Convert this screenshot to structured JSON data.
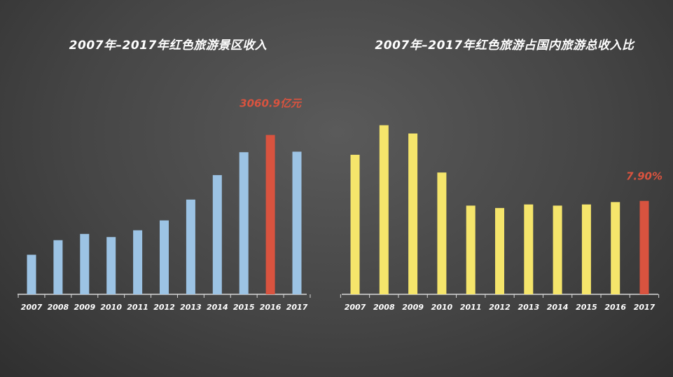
{
  "colors": {
    "left_bar": "#9cc3e4",
    "right_bar": "#f5e56b",
    "highlight": "#d9533f",
    "axis": "#d9d9d9"
  },
  "chart_data": [
    {
      "type": "bar",
      "title": "2007年–2017年红色旅游景区收入",
      "categories": [
        "2007",
        "2008",
        "2009",
        "2010",
        "2011",
        "2012",
        "2013",
        "2014",
        "2015",
        "2016",
        "2017"
      ],
      "values": [
        760,
        1040,
        1160,
        1100,
        1230,
        1420,
        1820,
        2290,
        2730,
        3060.9,
        2740
      ],
      "highlight_index": 9,
      "annotation": {
        "text": "3060.9亿元",
        "index": 9
      },
      "ylim": [
        0,
        3500
      ],
      "grid": false
    },
    {
      "type": "bar",
      "title": "2007年–2017年红色旅游占国内旅游总收入比",
      "categories": [
        "2007",
        "2008",
        "2009",
        "2010",
        "2011",
        "2012",
        "2013",
        "2014",
        "2015",
        "2016",
        "2017"
      ],
      "values": [
        11.8,
        14.3,
        13.6,
        10.3,
        7.5,
        7.3,
        7.6,
        7.5,
        7.6,
        7.8,
        7.9
      ],
      "highlight_index": 10,
      "annotation": {
        "text": "7.90%",
        "index": 10
      },
      "ylim": [
        0,
        16
      ],
      "grid": false
    }
  ]
}
